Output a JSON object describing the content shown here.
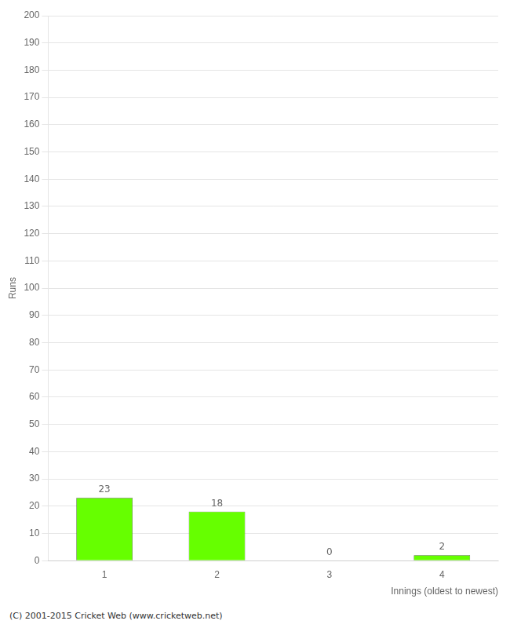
{
  "chart_data": {
    "type": "bar",
    "categories": [
      "1",
      "2",
      "3",
      "4"
    ],
    "values": [
      23,
      18,
      0,
      2
    ],
    "color": "#66ff00",
    "xlabel": "Innings (oldest to newest)",
    "ylabel": "Runs",
    "ylim": [
      0,
      200
    ],
    "yticks": [
      0,
      10,
      20,
      30,
      40,
      50,
      60,
      70,
      80,
      90,
      100,
      110,
      120,
      130,
      140,
      150,
      160,
      170,
      180,
      190,
      200
    ],
    "grid": true,
    "data_labels": true,
    "annotations": [
      "(C) 2001-2015 Cricket Web (www.cricketweb.net)"
    ]
  }
}
